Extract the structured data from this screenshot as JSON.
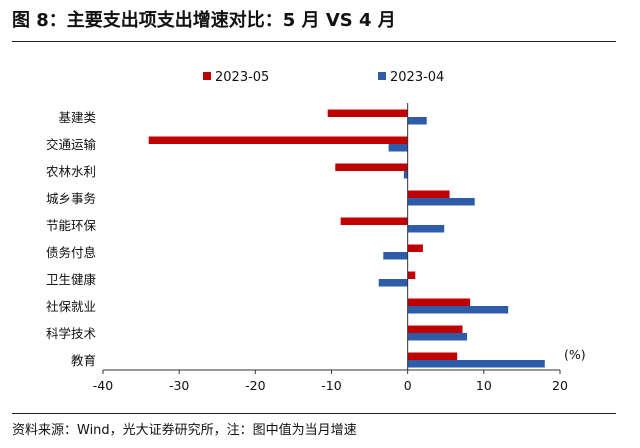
{
  "header": {
    "title": "图 8：主要支出项支出增速对比：5 月  VS 4 月"
  },
  "footer": {
    "source": "资料来源：Wind，光大证券研究所，注：图中值为当月增速"
  },
  "chart_data": {
    "type": "bar",
    "orientation": "horizontal",
    "categories": [
      "基建类",
      "交通运输",
      "农林水利",
      "城乡事务",
      "节能环保",
      "债务付息",
      "卫生健康",
      "社保就业",
      "科学技术",
      "教育"
    ],
    "series": [
      {
        "name": "2023-05",
        "color": "#c00000",
        "values": [
          -10.5,
          -34.0,
          -9.5,
          5.5,
          -8.8,
          2.0,
          1.0,
          8.2,
          7.2,
          6.5
        ]
      },
      {
        "name": "2023-04",
        "color": "#2e5ca8",
        "values": [
          2.5,
          -2.5,
          -0.5,
          8.8,
          4.8,
          -3.2,
          -3.8,
          13.2,
          7.8,
          18.0
        ]
      }
    ],
    "xlim": [
      -40,
      20
    ],
    "xticks": [
      -40,
      -30,
      -20,
      -10,
      0,
      10,
      20
    ],
    "unit_label": "(%)",
    "legend_position": "top",
    "grid": false
  }
}
